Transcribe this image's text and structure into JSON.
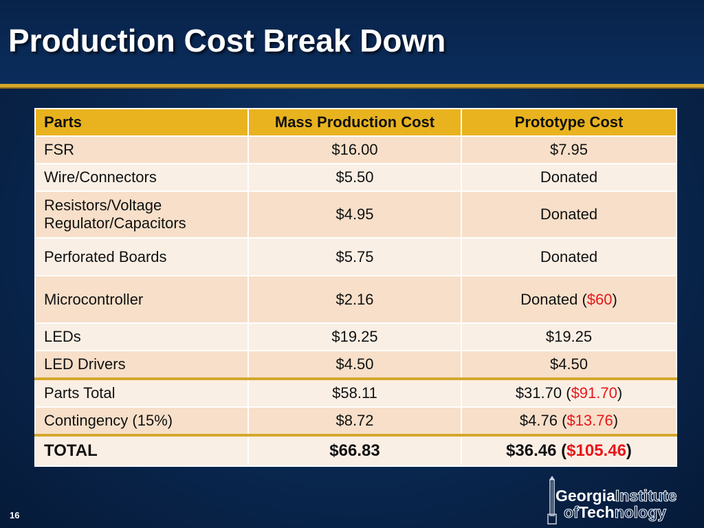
{
  "slide": {
    "title": "Production Cost Break Down",
    "page_number": "16"
  },
  "table": {
    "headers": [
      "Parts",
      "Mass Production Cost",
      "Prototype Cost"
    ],
    "rows": [
      {
        "part": "FSR",
        "mass": "$16.00",
        "proto": "$7.95",
        "proto_extra": ""
      },
      {
        "part": "Wire/Connectors",
        "mass": "$5.50",
        "proto": "Donated",
        "proto_extra": ""
      },
      {
        "part_line1": "Resistors/Voltage",
        "part_line2": "Regulator/Capacitors",
        "mass": "$4.95",
        "proto": "Donated",
        "proto_extra": ""
      },
      {
        "part": "Perforated Boards",
        "mass": "$5.75",
        "proto": "Donated",
        "proto_extra": ""
      },
      {
        "part": "Microcontroller",
        "mass": "$2.16",
        "proto": "Donated",
        "proto_extra": "$60"
      },
      {
        "part": "LEDs",
        "mass": "$19.25",
        "proto": "$19.25",
        "proto_extra": ""
      },
      {
        "part": "LED Drivers",
        "mass": "$4.50",
        "proto": "$4.50",
        "proto_extra": ""
      },
      {
        "part": "Parts Total",
        "mass": "$58.11",
        "proto": "$31.70",
        "proto_extra": "$91.70"
      },
      {
        "part": "Contingency (15%)",
        "mass": "$8.72",
        "proto": "$4.76",
        "proto_extra": "$13.76"
      },
      {
        "part": "TOTAL",
        "mass": "$66.83",
        "proto": "$36.46",
        "proto_extra": "$105.46"
      }
    ]
  },
  "logo": {
    "line1_bold": "Georgia",
    "line1_outline": "Institute",
    "line2_outline_a": "of",
    "line2_bold": "Tech",
    "line2_outline_b": "nology"
  },
  "colors": {
    "header_bg": "#e9b31f",
    "row_odd": "#f7dfc9",
    "row_even": "#faefe5",
    "accent_red": "#e8161b",
    "gold_rule": "#d4a72c",
    "navy_bg": "#0a2a55"
  }
}
